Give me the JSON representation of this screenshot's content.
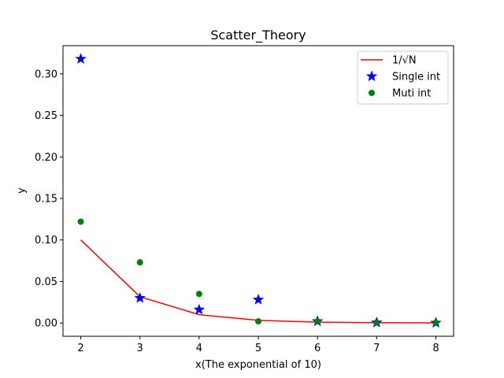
{
  "chart_data": {
    "type": "scatter",
    "title": "Scatter_Theory",
    "xlabel": "x(The exponential of 10)",
    "ylabel": "y",
    "xlim": [
      1.7,
      8.3
    ],
    "ylim": [
      -0.016,
      0.334
    ],
    "xticks": [
      2,
      3,
      4,
      5,
      6,
      7,
      8
    ],
    "yticks": [
      0.0,
      0.05,
      0.1,
      0.15,
      0.2,
      0.25,
      0.3
    ],
    "ytick_labels": [
      "0.00",
      "0.05",
      "0.10",
      "0.15",
      "0.20",
      "0.25",
      "0.30"
    ],
    "grid": false,
    "legend_position": "top-right",
    "series": [
      {
        "name": "1/√N",
        "kind": "line",
        "color": "#ff0000",
        "x": [
          2,
          3,
          4,
          5,
          6,
          7,
          8
        ],
        "y": [
          0.1,
          0.0316,
          0.01,
          0.00316,
          0.001,
          0.000316,
          0.0001
        ]
      },
      {
        "name": "Single int",
        "kind": "star",
        "color": "#0000ff",
        "x": [
          2,
          3,
          4,
          5,
          6,
          7,
          8
        ],
        "y": [
          0.318,
          0.03,
          0.016,
          0.028,
          0.002,
          0.0005,
          0.0002
        ]
      },
      {
        "name": "Muti int",
        "kind": "dot",
        "color": "#008000",
        "x": [
          2,
          3,
          4,
          5,
          6,
          7,
          8
        ],
        "y": [
          0.122,
          0.073,
          0.035,
          0.002,
          0.002,
          0.0005,
          0.0002
        ]
      }
    ]
  }
}
